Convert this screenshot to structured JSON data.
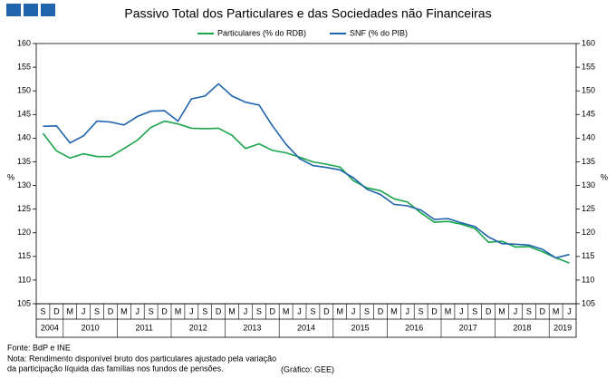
{
  "chart_data": {
    "type": "line",
    "title": "Passivo Total dos Particulares e das Sociedades não Financeiras",
    "ylabel": "%",
    "y2label": "%",
    "categories": [
      "S",
      "D",
      "M",
      "J",
      "S",
      "D",
      "M",
      "J",
      "S",
      "D",
      "M",
      "J",
      "S",
      "D",
      "M",
      "J",
      "S",
      "D",
      "M",
      "J",
      "S",
      "D",
      "M",
      "J",
      "S",
      "D",
      "M",
      "J",
      "S",
      "D",
      "M",
      "J",
      "S",
      "D",
      "M",
      "J",
      "S",
      "D",
      "M",
      "J"
    ],
    "category_groups": [
      {
        "label": "2004",
        "size": 2
      },
      {
        "label": "2010",
        "size": 4
      },
      {
        "label": "2011",
        "size": 4
      },
      {
        "label": "2012",
        "size": 4
      },
      {
        "label": "2013",
        "size": 4
      },
      {
        "label": "2014",
        "size": 4
      },
      {
        "label": "2015",
        "size": 4
      },
      {
        "label": "2016",
        "size": 4
      },
      {
        "label": "2017",
        "size": 4
      },
      {
        "label": "2018",
        "size": 4
      },
      {
        "label": "2019",
        "size": 2
      }
    ],
    "series": [
      {
        "name": "Particulares (% do RDB)",
        "color": "#1aa64a",
        "values": [
          141.0,
          137.3,
          135.8,
          136.7,
          136.1,
          136.1,
          137.8,
          139.6,
          142.3,
          143.6,
          143.0,
          142.1,
          142.0,
          142.1,
          140.6,
          137.8,
          138.8,
          137.4,
          136.9,
          136.0,
          135.0,
          134.5,
          133.9,
          131.0,
          129.5,
          128.9,
          127.2,
          126.5,
          124.2,
          122.2,
          122.4,
          121.8,
          120.9,
          118.0,
          118.2,
          117.0,
          117.1,
          116.0,
          114.7,
          113.6
        ]
      },
      {
        "name": "SNF (% do PIB)",
        "color": "#1f64ad",
        "values": [
          142.5,
          142.6,
          139.0,
          140.5,
          143.6,
          143.4,
          142.8,
          144.6,
          145.7,
          145.8,
          143.6,
          148.3,
          148.9,
          151.5,
          148.9,
          147.6,
          147.0,
          142.6,
          138.7,
          135.7,
          134.2,
          133.8,
          133.3,
          131.6,
          129.2,
          128.1,
          126.0,
          125.7,
          124.8,
          122.8,
          123.0,
          122.1,
          121.3,
          119.1,
          117.7,
          117.6,
          117.4,
          116.5,
          114.7,
          115.4
        ]
      }
    ],
    "ylim": [
      105,
      160
    ],
    "yticks": [
      105,
      110,
      115,
      120,
      125,
      130,
      135,
      140,
      145,
      150,
      155,
      160
    ],
    "y2lim": [
      105,
      160
    ],
    "y2ticks": [
      105,
      110,
      115,
      120,
      125,
      130,
      135,
      140,
      145,
      150,
      155,
      160
    ],
    "legend": "top",
    "notes": [
      "Fonte: BdP e INE",
      "Nota: Rendimento disponível bruto dos particulares ajustado pela variação",
      "da participação líquida das famílias nos fundos de pensões."
    ],
    "credit": "(Gráfico: GEE)"
  }
}
